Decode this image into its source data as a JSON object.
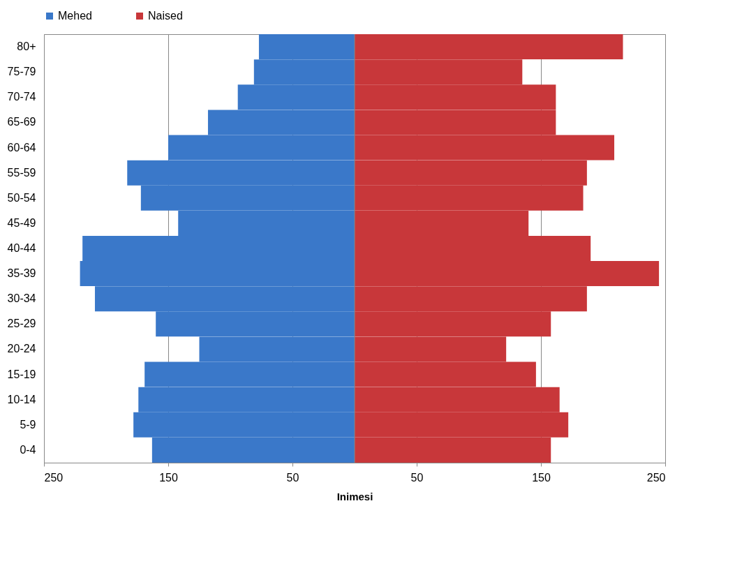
{
  "chart_data": {
    "type": "bar",
    "orientation": "horizontal",
    "xlabel": "Inimesi",
    "categories": [
      "80+",
      "75-79",
      "70-74",
      "65-69",
      "60-64",
      "55-59",
      "50-54",
      "45-49",
      "40-44",
      "35-39",
      "30-34",
      "25-29",
      "20-24",
      "15-19",
      "10-14",
      "5-9",
      "0-4"
    ],
    "series": [
      {
        "name": "Mehed",
        "color": "#3a78c9",
        "values": [
          -77,
          -81,
          -94,
          -118,
          -150,
          -183,
          -172,
          -142,
          -219,
          -221,
          -209,
          -160,
          -125,
          -169,
          -174,
          -178,
          -163
        ]
      },
      {
        "name": "Naised",
        "color": "#c8373a",
        "values": [
          216,
          135,
          162,
          162,
          209,
          187,
          184,
          140,
          190,
          245,
          187,
          158,
          122,
          146,
          165,
          172,
          158
        ]
      }
    ],
    "xlim": [
      -250,
      250
    ],
    "xticks": [
      {
        "value": -250,
        "label": "250"
      },
      {
        "value": -150,
        "label": "150"
      },
      {
        "value": -50,
        "label": "50"
      },
      {
        "value": 50,
        "label": "50"
      },
      {
        "value": 150,
        "label": "150"
      },
      {
        "value": 250,
        "label": "250"
      }
    ],
    "stacked": true,
    "grid": "x",
    "legend": "top"
  }
}
